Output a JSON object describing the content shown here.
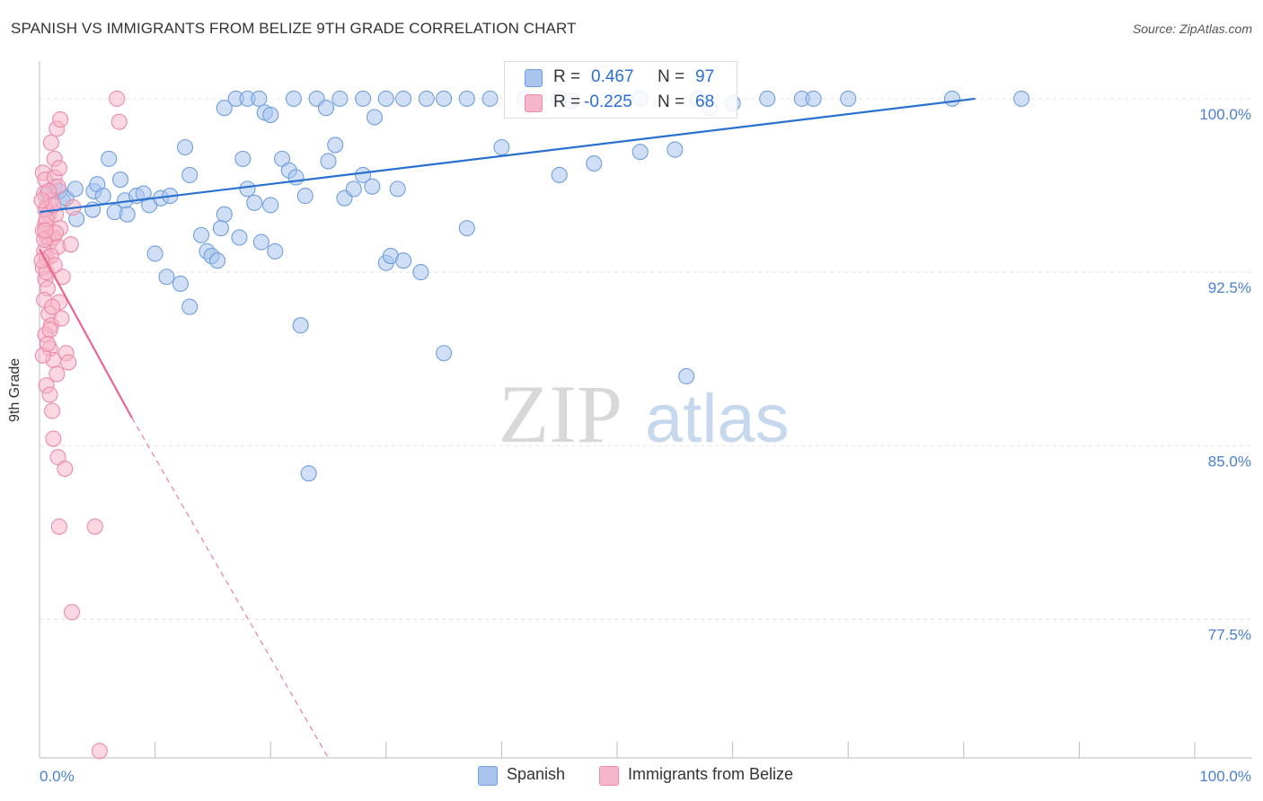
{
  "title": "SPANISH VS IMMIGRANTS FROM BELIZE 9TH GRADE CORRELATION CHART",
  "source": "Source: ZipAtlas.com",
  "watermark": {
    "zip": "ZIP",
    "atlas": "atlas"
  },
  "legend": {
    "r_label": "R =",
    "n_label": "N =",
    "series": [
      {
        "r": "0.467",
        "n": "97"
      },
      {
        "r": "-0.225",
        "n": "68"
      }
    ]
  },
  "colors": {
    "spanish_fill": "#a9c5ee",
    "spanish_stroke": "#6f9fdc",
    "spanish_line": "#2970d0",
    "belize_fill": "#f6b6c9",
    "belize_stroke": "#ec8aaa",
    "belize_line": "#e8668f",
    "tick_text": "#4a7fd1",
    "grid": "#e3e3e3"
  },
  "chart_data": {
    "type": "scatter",
    "title": "SPANISH VS IMMIGRANTS FROM BELIZE 9TH GRADE CORRELATION CHART",
    "xlabel": "",
    "ylabel": "9th Grade",
    "xlim": [
      0,
      100
    ],
    "ylim": [
      71.5,
      101.2
    ],
    "x_tick_labels": [
      "0.0%",
      "100.0%"
    ],
    "y_ticks": [
      77.5,
      85.0,
      92.5,
      100.0
    ],
    "y_tick_labels": [
      "77.5%",
      "85.0%",
      "92.5%",
      "100.0%"
    ],
    "grid": true,
    "series": [
      {
        "name": "Spanish",
        "trend": {
          "x0": 0,
          "y0": 95.1,
          "x1": 81,
          "y1": 100.0
        },
        "points": [
          [
            1.3,
            96.2
          ],
          [
            2.0,
            95.6
          ],
          [
            0.7,
            95.9
          ],
          [
            1.7,
            96.0
          ],
          [
            2.3,
            95.7
          ],
          [
            3.1,
            96.1
          ],
          [
            3.2,
            94.8
          ],
          [
            4.7,
            96.0
          ],
          [
            6.0,
            97.4
          ],
          [
            4.6,
            95.2
          ],
          [
            5.0,
            96.3
          ],
          [
            5.5,
            95.8
          ],
          [
            6.5,
            95.1
          ],
          [
            7.0,
            96.5
          ],
          [
            7.4,
            95.6
          ],
          [
            7.6,
            95.0
          ],
          [
            8.4,
            95.8
          ],
          [
            9.0,
            95.9
          ],
          [
            9.5,
            95.4
          ],
          [
            10.5,
            95.7
          ],
          [
            11.3,
            95.8
          ],
          [
            10.0,
            93.3
          ],
          [
            11.0,
            92.3
          ],
          [
            12.2,
            92.0
          ],
          [
            13.0,
            91.0
          ],
          [
            12.6,
            97.9
          ],
          [
            13.0,
            96.7
          ],
          [
            14.0,
            94.1
          ],
          [
            14.5,
            93.4
          ],
          [
            14.9,
            93.2
          ],
          [
            15.4,
            93.0
          ],
          [
            16.0,
            95.0
          ],
          [
            15.7,
            94.4
          ],
          [
            17.3,
            94.0
          ],
          [
            17.6,
            97.4
          ],
          [
            18.0,
            96.1
          ],
          [
            18.6,
            95.5
          ],
          [
            19.2,
            93.8
          ],
          [
            20.0,
            95.4
          ],
          [
            20.4,
            93.4
          ],
          [
            21.0,
            97.4
          ],
          [
            21.6,
            96.9
          ],
          [
            22.2,
            96.6
          ],
          [
            22.6,
            90.2
          ],
          [
            23.3,
            83.8
          ],
          [
            23.0,
            95.8
          ],
          [
            25.0,
            97.3
          ],
          [
            25.6,
            98.0
          ],
          [
            26.4,
            95.7
          ],
          [
            27.2,
            96.1
          ],
          [
            28.0,
            96.7
          ],
          [
            28.8,
            96.2
          ],
          [
            30.0,
            92.9
          ],
          [
            30.4,
            93.2
          ],
          [
            31.0,
            96.1
          ],
          [
            31.5,
            93.0
          ],
          [
            33.0,
            92.5
          ],
          [
            35.0,
            89.0
          ],
          [
            37.0,
            94.4
          ],
          [
            40.0,
            97.9
          ],
          [
            45.0,
            96.7
          ],
          [
            48.0,
            97.2
          ],
          [
            52.0,
            97.7
          ],
          [
            55.0,
            97.8
          ],
          [
            56.0,
            88.0
          ],
          [
            58.0,
            99.6
          ],
          [
            60.0,
            99.8
          ],
          [
            16.0,
            99.6
          ],
          [
            17.0,
            100.0
          ],
          [
            18.0,
            100.0
          ],
          [
            19.0,
            100.0
          ],
          [
            19.5,
            99.4
          ],
          [
            20.0,
            99.3
          ],
          [
            22.0,
            100.0
          ],
          [
            24.0,
            100.0
          ],
          [
            24.8,
            99.6
          ],
          [
            26.0,
            100.0
          ],
          [
            28.0,
            100.0
          ],
          [
            29.0,
            99.2
          ],
          [
            30.0,
            100.0
          ],
          [
            31.5,
            100.0
          ],
          [
            33.5,
            100.0
          ],
          [
            35.0,
            100.0
          ],
          [
            37.0,
            100.0
          ],
          [
            39.0,
            100.0
          ],
          [
            42.0,
            100.0
          ],
          [
            45.0,
            100.0
          ],
          [
            46.0,
            99.9
          ],
          [
            50.0,
            100.0
          ],
          [
            52.0,
            100.0
          ],
          [
            57.0,
            100.0
          ],
          [
            63.0,
            100.0
          ],
          [
            66.0,
            100.0
          ],
          [
            67.0,
            100.0
          ],
          [
            70.0,
            100.0
          ],
          [
            79.0,
            100.0
          ],
          [
            85.0,
            100.0
          ]
        ]
      },
      {
        "name": "Immigrants from Belize",
        "trend": {
          "x0": 0,
          "y0": 93.5,
          "x1": 8,
          "y1": 86.2
        },
        "trend_dashed": {
          "x0": 8,
          "y0": 86.2,
          "x1": 25,
          "y1": 71.5
        },
        "points": [
          [
            0.3,
            96.8
          ],
          [
            0.5,
            96.5
          ],
          [
            0.4,
            95.9
          ],
          [
            0.6,
            95.3
          ],
          [
            0.8,
            95.0
          ],
          [
            0.5,
            94.6
          ],
          [
            0.3,
            94.3
          ],
          [
            0.7,
            94.0
          ],
          [
            0.9,
            93.8
          ],
          [
            0.4,
            93.4
          ],
          [
            0.6,
            93.1
          ],
          [
            0.3,
            92.7
          ],
          [
            0.5,
            92.2
          ],
          [
            0.7,
            91.8
          ],
          [
            0.4,
            91.3
          ],
          [
            0.8,
            90.7
          ],
          [
            1.0,
            90.2
          ],
          [
            0.5,
            89.8
          ],
          [
            0.9,
            89.2
          ],
          [
            1.2,
            88.7
          ],
          [
            1.5,
            88.1
          ],
          [
            0.6,
            87.6
          ],
          [
            0.9,
            87.2
          ],
          [
            1.1,
            86.5
          ],
          [
            1.3,
            96.6
          ],
          [
            1.6,
            96.2
          ],
          [
            1.0,
            95.6
          ],
          [
            1.4,
            95.0
          ],
          [
            1.8,
            94.4
          ],
          [
            1.2,
            94.0
          ],
          [
            1.6,
            93.6
          ],
          [
            2.0,
            92.3
          ],
          [
            1.7,
            91.2
          ],
          [
            1.9,
            90.5
          ],
          [
            2.3,
            89.0
          ],
          [
            2.5,
            88.6
          ],
          [
            1.3,
            97.4
          ],
          [
            1.7,
            97.0
          ],
          [
            1.0,
            98.1
          ],
          [
            1.5,
            98.7
          ],
          [
            1.8,
            99.1
          ],
          [
            6.7,
            100.0
          ],
          [
            6.9,
            99.0
          ],
          [
            1.2,
            85.3
          ],
          [
            1.6,
            84.5
          ],
          [
            2.2,
            84.0
          ],
          [
            1.7,
            81.5
          ],
          [
            4.8,
            81.5
          ],
          [
            2.8,
            77.8
          ],
          [
            5.2,
            71.8
          ],
          [
            2.7,
            93.7
          ],
          [
            2.9,
            95.3
          ],
          [
            0.4,
            93.9
          ],
          [
            0.6,
            92.5
          ],
          [
            1.1,
            91.0
          ],
          [
            0.9,
            90.0
          ],
          [
            0.3,
            88.9
          ],
          [
            0.7,
            89.4
          ],
          [
            0.5,
            95.2
          ],
          [
            0.8,
            96.0
          ],
          [
            1.2,
            95.4
          ],
          [
            1.4,
            94.2
          ],
          [
            0.2,
            95.6
          ],
          [
            0.6,
            94.8
          ],
          [
            1.0,
            93.2
          ],
          [
            1.3,
            92.8
          ],
          [
            0.2,
            93.0
          ],
          [
            0.5,
            94.3
          ]
        ]
      }
    ]
  },
  "bottom_legend": [
    {
      "label": "Spanish"
    },
    {
      "label": "Immigrants from Belize"
    }
  ]
}
